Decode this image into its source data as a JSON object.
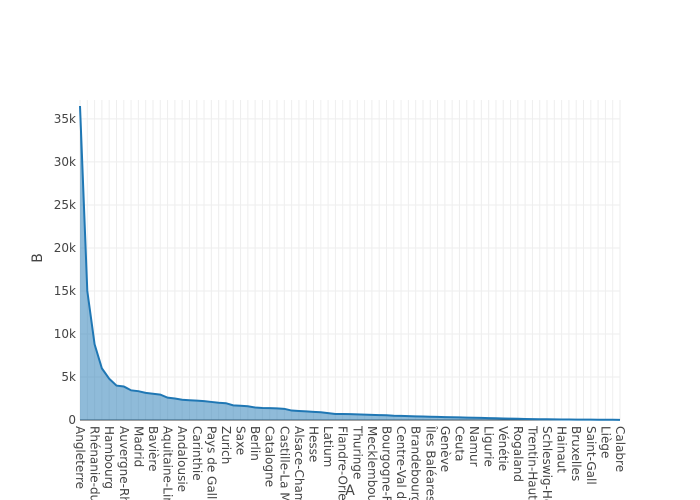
{
  "chart_data": {
    "type": "area",
    "x_label": "A",
    "y_label": "B",
    "categories": [
      "Angleterre",
      null,
      "Rhénanie-du-",
      null,
      "Hambourg",
      null,
      "Auvergne-Rh",
      null,
      "Madrid",
      null,
      "Bavière",
      null,
      "Aquitaine-Lin",
      null,
      "Andalousie",
      null,
      "Carinthie",
      null,
      "Pays de Galle",
      null,
      "Zurich",
      null,
      "Saxe",
      null,
      "Berlin",
      null,
      "Catalogne",
      null,
      "Castille-La Ma",
      null,
      "Alsace-Cham",
      null,
      "Hesse",
      null,
      "Latium",
      null,
      "Flandre-Orie",
      null,
      "Thuringe",
      null,
      "Mecklembou",
      null,
      "Bourgogne-F",
      null,
      "Centre-Val de",
      null,
      "Brandebourg",
      null,
      "Îles Baléares",
      null,
      "Genève",
      null,
      "Ceuta",
      null,
      "Namur",
      null,
      "Ligurie",
      null,
      "Vénétie",
      null,
      "Rogaland",
      null,
      "Trentin-Haut-",
      null,
      "Schleswig-Ho",
      null,
      "Hainaut",
      null,
      "Bruxelles",
      null,
      "Saint-Gall",
      null,
      "Liège",
      null,
      "Calabre"
    ],
    "values": [
      36500,
      15000,
      8800,
      6000,
      4800,
      4000,
      3900,
      3450,
      3350,
      3150,
      3050,
      2950,
      2600,
      2500,
      2350,
      2300,
      2250,
      2200,
      2100,
      2000,
      1950,
      1700,
      1650,
      1600,
      1450,
      1400,
      1380,
      1350,
      1300,
      1100,
      1050,
      1000,
      950,
      900,
      800,
      700,
      700,
      680,
      650,
      620,
      600,
      570,
      550,
      500,
      480,
      450,
      420,
      400,
      380,
      360,
      340,
      320,
      300,
      280,
      260,
      240,
      220,
      200,
      180,
      160,
      140,
      120,
      100,
      90,
      80,
      70,
      60,
      55,
      50,
      45,
      40,
      35,
      30,
      25,
      20
    ],
    "color": "#1f77b4",
    "ylim": [
      0,
      37200
    ],
    "yticks": [
      0,
      {
        "value": 5000,
        "label": "5k"
      },
      {
        "value": 10000,
        "label": "10k"
      },
      {
        "value": 15000,
        "label": "15k"
      },
      {
        "value": 20000,
        "label": "20k"
      },
      {
        "value": 25000,
        "label": "25k"
      },
      {
        "value": 30000,
        "label": "30k"
      },
      {
        "value": 35000,
        "label": "35k"
      }
    ],
    "grid": true
  }
}
